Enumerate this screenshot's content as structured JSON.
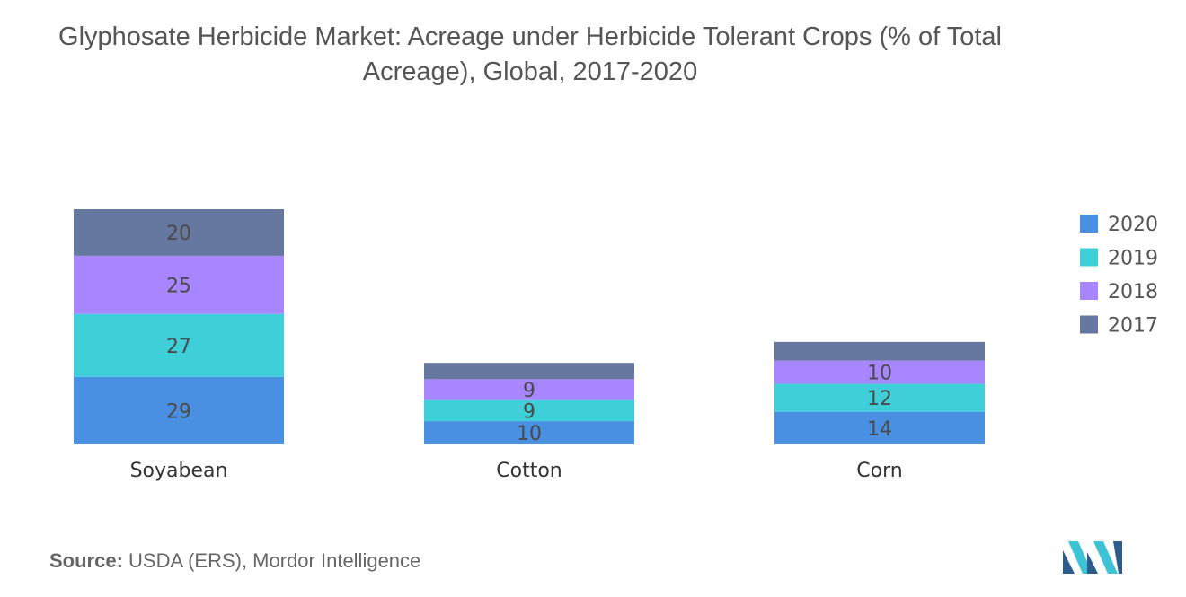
{
  "title": "Glyphosate Herbicide Market: Acreage under Herbicide Tolerant Crops (% of Total Acreage), Global, 2017-2020",
  "title_line1": "Glyphosate Herbicide Market: Acreage under Herbicide Tolerant Crops (% of Total",
  "title_line2": "Acreage), Global, 2017-2020",
  "source": {
    "label": "Source:",
    "text": "USDA (ERS), Mordor Intelligence"
  },
  "logo_icon": "mordor-intelligence-logo",
  "chart_data": {
    "type": "bar",
    "stacked": true,
    "categories": [
      "Soyabean",
      "Cotton",
      "Corn"
    ],
    "series": [
      {
        "name": "2020",
        "color": "#4a90e2",
        "values": [
          29,
          10,
          14
        ],
        "labels": [
          "29",
          "10",
          "14"
        ]
      },
      {
        "name": "2019",
        "color": "#3ecfd9",
        "values": [
          27,
          9,
          12
        ],
        "labels": [
          "27",
          "9",
          "12"
        ]
      },
      {
        "name": "2018",
        "color": "#a886ff",
        "values": [
          25,
          9,
          10
        ],
        "labels": [
          "25",
          "9",
          "10"
        ]
      },
      {
        "name": "2017",
        "color": "#66789f",
        "values": [
          20,
          7,
          8
        ],
        "labels": [
          "20",
          "",
          ""
        ]
      }
    ],
    "legend": [
      "2020",
      "2019",
      "2018",
      "2017"
    ],
    "legend_position": "right",
    "ylim": [
      0,
      101
    ],
    "grid": false
  }
}
